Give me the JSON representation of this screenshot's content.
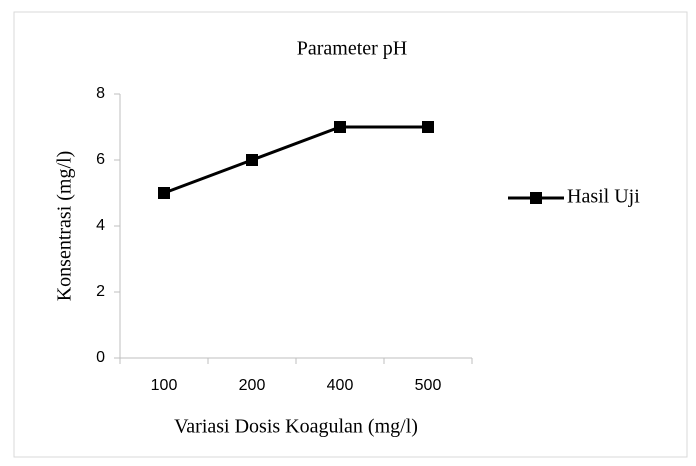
{
  "chart_data": {
    "type": "line",
    "title": "Parameter pH",
    "x_label": "Variasi Dosis Koagulan (mg/l)",
    "y_label": "Konsentrasi (mg/l)",
    "categories": [
      "100",
      "200",
      "400",
      "500"
    ],
    "series": [
      {
        "name": "Hasil Uji",
        "color": "#000000",
        "values": [
          5,
          6,
          7,
          7
        ]
      }
    ],
    "ylim": [
      0,
      8
    ],
    "yticks": [
      0,
      2,
      4,
      6,
      8
    ],
    "grid": false,
    "legend": "right"
  }
}
